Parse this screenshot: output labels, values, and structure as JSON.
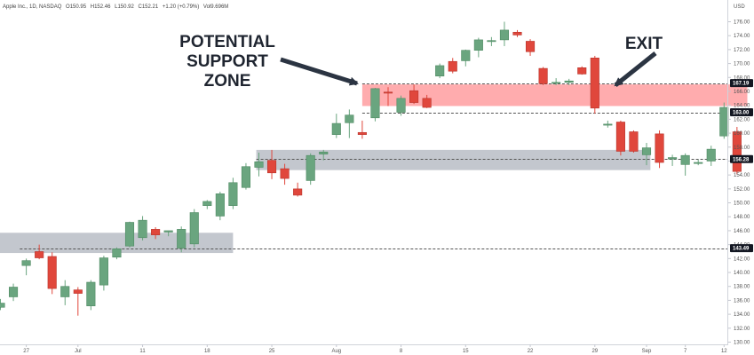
{
  "legend": {
    "symbol": "Apple Inc., 1D, NASDAQ",
    "o_label": "O",
    "o": "150.95",
    "h_label": "H",
    "h": "152.46",
    "l_label": "L",
    "l": "150.92",
    "c_label": "C",
    "c": "152.21",
    "change": "+1.20 (+0.79%)",
    "vol_label": "Vol",
    "vol": "9.696M"
  },
  "currency": "USD",
  "colors": {
    "up": "#6aa57f",
    "down": "#e0473c",
    "support_zone": "#b9bdc6",
    "resistance_zone": "#ff9ea0",
    "arrow": "#2b3442",
    "label_dark": "#131722"
  },
  "annotations": {
    "support_line1": "POTENTIAL",
    "support_line2": "SUPPORT",
    "support_line3": "ZONE",
    "exit": "EXIT"
  },
  "chart_data": {
    "type": "candlestick",
    "y_range": [
      130,
      178
    ],
    "y_ticks": [
      "130.00",
      "132.00",
      "134.00",
      "136.00",
      "138.00",
      "140.00",
      "142.00",
      "144.00",
      "146.00",
      "148.00",
      "150.00",
      "152.00",
      "154.00",
      "156.00",
      "158.00",
      "160.00",
      "162.00",
      "164.00",
      "166.00",
      "168.00",
      "170.00",
      "172.00",
      "174.00",
      "176.00"
    ],
    "x_ticks": [
      {
        "label": "27",
        "index": 2
      },
      {
        "label": "Jul",
        "index": 6
      },
      {
        "label": "11",
        "index": 11
      },
      {
        "label": "18",
        "index": 16
      },
      {
        "label": "25",
        "index": 21
      },
      {
        "label": "Aug",
        "index": 26
      },
      {
        "label": "8",
        "index": 31
      },
      {
        "label": "15",
        "index": 36
      },
      {
        "label": "22",
        "index": 41
      },
      {
        "label": "29",
        "index": 46
      },
      {
        "label": "Sep",
        "index": 50
      },
      {
        "label": "7",
        "index": 53
      },
      {
        "label": "12",
        "index": 56
      }
    ],
    "candles": [
      {
        "o": 135.0,
        "h": 136.2,
        "l": 134.6,
        "c": 135.6
      },
      {
        "o": 136.5,
        "h": 138.4,
        "l": 135.9,
        "c": 137.9
      },
      {
        "o": 141.0,
        "h": 142.0,
        "l": 139.6,
        "c": 141.7
      },
      {
        "o": 143.0,
        "h": 144.0,
        "l": 141.9,
        "c": 142.1
      },
      {
        "o": 142.3,
        "h": 142.9,
        "l": 136.9,
        "c": 137.7
      },
      {
        "o": 136.5,
        "h": 138.9,
        "l": 135.3,
        "c": 138.0
      },
      {
        "o": 137.5,
        "h": 137.9,
        "l": 133.8,
        "c": 137.0
      },
      {
        "o": 135.2,
        "h": 138.9,
        "l": 134.6,
        "c": 138.6
      },
      {
        "o": 138.2,
        "h": 142.4,
        "l": 137.4,
        "c": 142.1
      },
      {
        "o": 142.2,
        "h": 143.6,
        "l": 141.9,
        "c": 143.4
      },
      {
        "o": 143.8,
        "h": 147.3,
        "l": 143.6,
        "c": 147.2
      },
      {
        "o": 145.0,
        "h": 148.1,
        "l": 144.6,
        "c": 147.5
      },
      {
        "o": 146.2,
        "h": 146.5,
        "l": 144.8,
        "c": 145.4
      },
      {
        "o": 145.8,
        "h": 146.0,
        "l": 145.2,
        "c": 146.0
      },
      {
        "o": 143.5,
        "h": 146.6,
        "l": 142.9,
        "c": 146.2
      },
      {
        "o": 144.1,
        "h": 149.1,
        "l": 143.6,
        "c": 148.6
      },
      {
        "o": 149.6,
        "h": 150.4,
        "l": 149.1,
        "c": 150.2
      },
      {
        "o": 148.1,
        "h": 151.6,
        "l": 147.5,
        "c": 151.3
      },
      {
        "o": 149.6,
        "h": 153.6,
        "l": 149.1,
        "c": 152.9
      },
      {
        "o": 152.2,
        "h": 155.7,
        "l": 151.9,
        "c": 155.2
      },
      {
        "o": 155.1,
        "h": 157.2,
        "l": 153.8,
        "c": 155.9
      },
      {
        "o": 156.1,
        "h": 157.6,
        "l": 153.4,
        "c": 154.3
      },
      {
        "o": 154.9,
        "h": 155.6,
        "l": 152.6,
        "c": 153.5
      },
      {
        "o": 152.0,
        "h": 152.9,
        "l": 150.9,
        "c": 151.1
      },
      {
        "o": 153.2,
        "h": 157.1,
        "l": 152.6,
        "c": 156.8
      },
      {
        "o": 157.0,
        "h": 157.6,
        "l": 156.1,
        "c": 157.3
      },
      {
        "o": 159.8,
        "h": 162.8,
        "l": 159.3,
        "c": 161.4
      },
      {
        "o": 161.5,
        "h": 163.4,
        "l": 159.3,
        "c": 162.6
      },
      {
        "o": 160.1,
        "h": 161.8,
        "l": 159.2,
        "c": 159.8
      },
      {
        "o": 162.2,
        "h": 166.5,
        "l": 161.7,
        "c": 166.4
      },
      {
        "o": 165.9,
        "h": 166.6,
        "l": 163.9,
        "c": 165.8
      },
      {
        "o": 163.0,
        "h": 165.4,
        "l": 162.5,
        "c": 165.0
      },
      {
        "o": 166.1,
        "h": 167.0,
        "l": 164.2,
        "c": 164.4
      },
      {
        "o": 165.0,
        "h": 165.5,
        "l": 163.6,
        "c": 163.7
      },
      {
        "o": 168.2,
        "h": 170.0,
        "l": 167.9,
        "c": 169.7
      },
      {
        "o": 170.3,
        "h": 170.8,
        "l": 168.6,
        "c": 168.9
      },
      {
        "o": 170.4,
        "h": 172.0,
        "l": 169.6,
        "c": 171.9
      },
      {
        "o": 171.9,
        "h": 173.7,
        "l": 170.9,
        "c": 173.4
      },
      {
        "o": 173.2,
        "h": 173.8,
        "l": 172.5,
        "c": 173.3
      },
      {
        "o": 173.4,
        "h": 176.0,
        "l": 172.5,
        "c": 174.8
      },
      {
        "o": 174.5,
        "h": 174.8,
        "l": 173.8,
        "c": 174.1
      },
      {
        "o": 173.2,
        "h": 173.5,
        "l": 171.1,
        "c": 171.7
      },
      {
        "o": 169.3,
        "h": 169.5,
        "l": 166.9,
        "c": 167.1
      },
      {
        "o": 167.2,
        "h": 167.9,
        "l": 166.9,
        "c": 167.3
      },
      {
        "o": 167.3,
        "h": 167.8,
        "l": 166.9,
        "c": 167.5
      },
      {
        "o": 169.4,
        "h": 169.6,
        "l": 168.4,
        "c": 168.5
      },
      {
        "o": 170.8,
        "h": 171.1,
        "l": 162.8,
        "c": 163.6
      },
      {
        "o": 161.3,
        "h": 161.8,
        "l": 160.8,
        "c": 161.3
      },
      {
        "o": 161.6,
        "h": 161.8,
        "l": 156.8,
        "c": 157.4
      },
      {
        "o": 160.2,
        "h": 160.4,
        "l": 157.2,
        "c": 157.4
      },
      {
        "o": 156.9,
        "h": 158.6,
        "l": 155.4,
        "c": 157.9
      },
      {
        "o": 159.9,
        "h": 160.4,
        "l": 155.0,
        "c": 155.8
      },
      {
        "o": 156.3,
        "h": 156.9,
        "l": 155.3,
        "c": 156.5
      },
      {
        "o": 155.5,
        "h": 157.1,
        "l": 153.9,
        "c": 156.8
      },
      {
        "o": 155.7,
        "h": 156.2,
        "l": 155.4,
        "c": 155.8
      },
      {
        "o": 156.0,
        "h": 158.2,
        "l": 155.3,
        "c": 157.7
      },
      {
        "o": 159.6,
        "h": 164.4,
        "l": 159.2,
        "c": 163.7
      },
      {
        "o": 160.2,
        "h": 160.9,
        "l": 154.1,
        "c": 154.5
      }
    ],
    "zones": [
      {
        "name": "support-zone-1",
        "x_from": -0.5,
        "x_to": 18.0,
        "y_low": 142.8,
        "y_high": 145.7,
        "color": "#b9bdc6"
      },
      {
        "name": "support-zone-2",
        "x_from": 19.8,
        "x_to": 50.3,
        "y_low": 154.7,
        "y_high": 157.6,
        "color": "#b9bdc6"
      },
      {
        "name": "resistance-zone",
        "x_from": 28.0,
        "x_to": 57.8,
        "y_low": 163.9,
        "y_high": 167.0,
        "color": "#ff9ea0"
      }
    ],
    "levels": [
      {
        "value": 167.19,
        "label": "167.19",
        "x_from": 28.0
      },
      {
        "value": 163.0,
        "label": "163.00",
        "x_from": 28.0
      },
      {
        "value": 156.28,
        "label": "156.28",
        "x_from": 19.8
      },
      {
        "value": 143.49,
        "label": "143.49",
        "x_from": 1.5
      }
    ]
  }
}
